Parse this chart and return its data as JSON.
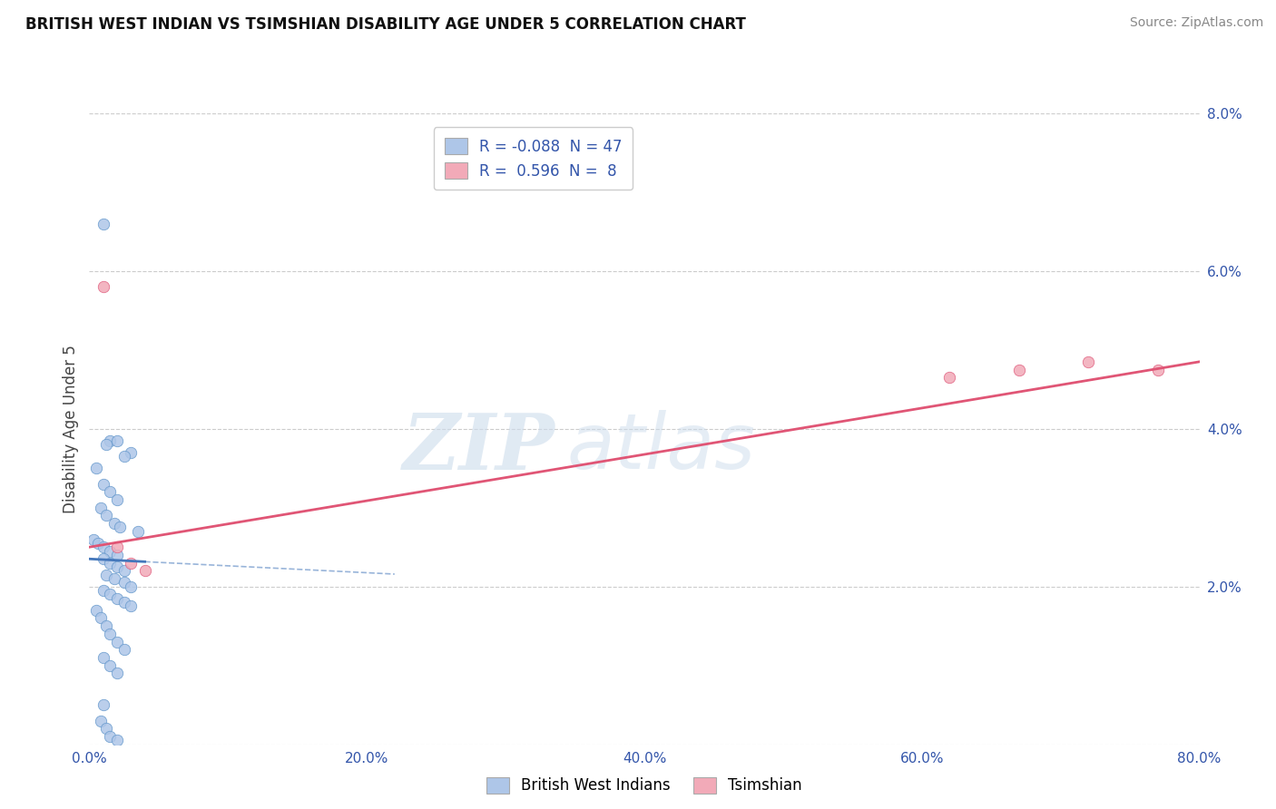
{
  "title": "BRITISH WEST INDIAN VS TSIMSHIAN DISABILITY AGE UNDER 5 CORRELATION CHART",
  "source": "Source: ZipAtlas.com",
  "ylabel": "Disability Age Under 5",
  "blue_r": -0.088,
  "blue_n": 47,
  "pink_r": 0.596,
  "pink_n": 8,
  "blue_color": "#aec6e8",
  "pink_color": "#f2aab8",
  "blue_edge_color": "#6699cc",
  "pink_edge_color": "#e06080",
  "blue_line_color": "#4477bb",
  "pink_line_color": "#e05575",
  "grid_color": "#cccccc",
  "text_color": "#3355aa",
  "title_color": "#111111",
  "source_color": "#888888",
  "blue_scatter_x": [
    1.0,
    1.5,
    2.0,
    3.0,
    1.2,
    2.5,
    0.5,
    1.0,
    1.5,
    2.0,
    0.8,
    1.2,
    1.8,
    2.2,
    3.5,
    0.3,
    0.6,
    1.0,
    1.5,
    2.0,
    1.0,
    1.5,
    2.0,
    2.5,
    1.2,
    1.8,
    2.5,
    3.0,
    1.0,
    1.5,
    2.0,
    2.5,
    3.0,
    0.5,
    0.8,
    1.2,
    1.5,
    2.0,
    2.5,
    1.0,
    1.5,
    2.0,
    1.0,
    0.8,
    1.2,
    1.5,
    2.0
  ],
  "blue_scatter_y": [
    6.6,
    3.85,
    3.85,
    3.7,
    3.8,
    3.65,
    3.5,
    3.3,
    3.2,
    3.1,
    3.0,
    2.9,
    2.8,
    2.75,
    2.7,
    2.6,
    2.55,
    2.5,
    2.45,
    2.4,
    2.35,
    2.3,
    2.25,
    2.2,
    2.15,
    2.1,
    2.05,
    2.0,
    1.95,
    1.9,
    1.85,
    1.8,
    1.75,
    1.7,
    1.6,
    1.5,
    1.4,
    1.3,
    1.2,
    1.1,
    1.0,
    0.9,
    0.5,
    0.3,
    0.2,
    0.1,
    0.05
  ],
  "pink_scatter_x": [
    1.0,
    2.0,
    3.0,
    4.0,
    62.0,
    67.0,
    72.0,
    77.0
  ],
  "pink_scatter_y": [
    5.8,
    2.5,
    2.3,
    2.2,
    4.65,
    4.75,
    4.85,
    4.75
  ],
  "blue_line_x0": 0,
  "blue_line_x1": 80,
  "blue_line_y0": 2.35,
  "blue_line_y1": 1.65,
  "blue_solid_x1": 4.0,
  "blue_dash_x1": 22.0,
  "pink_line_x0": 0,
  "pink_line_x1": 80,
  "pink_line_y0": 2.5,
  "pink_line_y1": 4.85,
  "xlim": [
    0,
    80
  ],
  "ylim": [
    0,
    8
  ],
  "xticks": [
    0,
    20,
    40,
    60,
    80
  ],
  "xtick_labels": [
    "0.0%",
    "20.0%",
    "40.0%",
    "60.0%",
    "80.0%"
  ],
  "yticks": [
    0,
    2,
    4,
    6,
    8
  ],
  "ytick_labels": [
    "",
    "2.0%",
    "4.0%",
    "6.0%",
    "8.0%"
  ],
  "watermark1": "ZIP",
  "watermark2": "atlas",
  "legend1_label": "R = -0.088  N = 47",
  "legend2_label": "R =  0.596  N =  8",
  "bottom_legend1": "British West Indians",
  "bottom_legend2": "Tsimshian"
}
